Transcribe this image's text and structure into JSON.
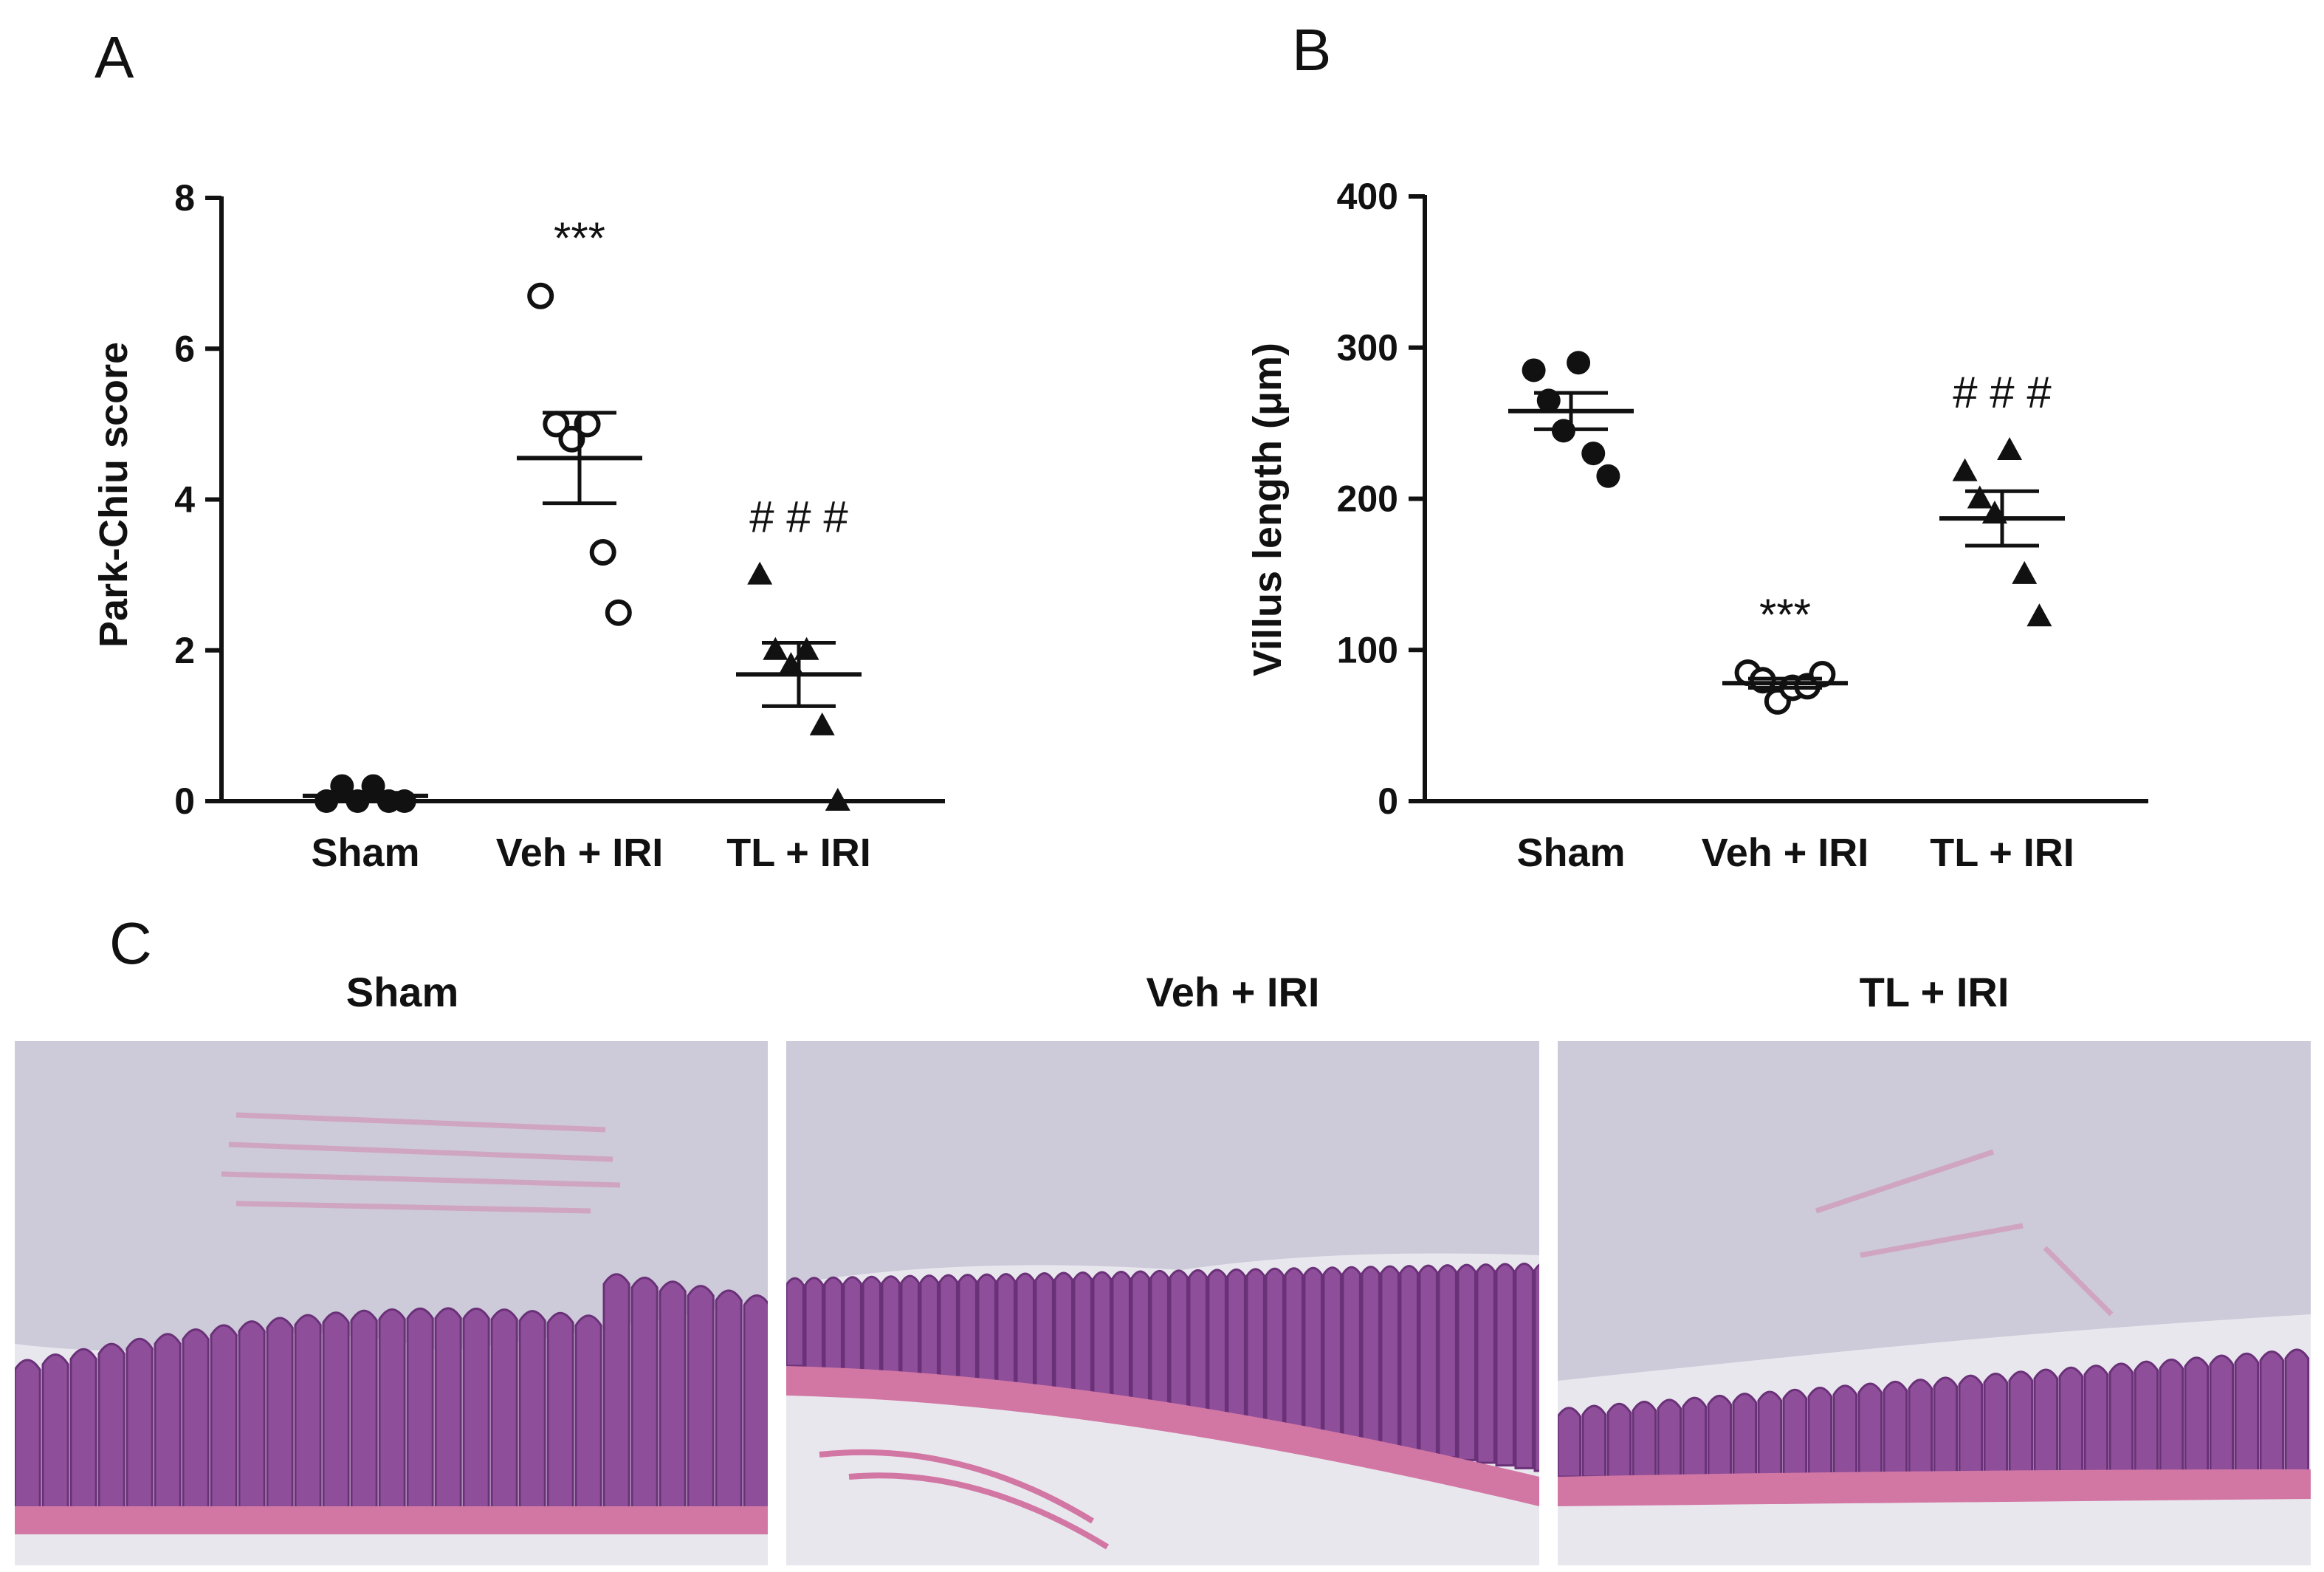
{
  "panels": {
    "a": "A",
    "b": "B",
    "c": "C"
  },
  "chart_data": [
    {
      "type": "scatter",
      "panel": "A",
      "title": "",
      "ylabel": "Park-Chiu score",
      "xlabel": "",
      "ylim": [
        0,
        8
      ],
      "yticks": [
        "0",
        "2",
        "4",
        "6",
        "8"
      ],
      "categories": [
        "Sham",
        "Veh + IRI",
        "TL + IRI"
      ],
      "series": [
        {
          "category": "Sham",
          "marker": "filled-circle",
          "values": [
            0,
            0.2,
            0,
            0.2,
            0,
            0
          ],
          "mean": 0.07,
          "sem": 0.04
        },
        {
          "category": "Veh + IRI",
          "marker": "open-circle",
          "values": [
            6.7,
            5,
            4.8,
            5,
            3.3,
            2.5
          ],
          "mean": 4.55,
          "sem": 0.6,
          "annotation": "***"
        },
        {
          "category": "TL + IRI",
          "marker": "filled-triangle",
          "values": [
            3,
            2,
            1.8,
            2,
            1,
            0
          ],
          "mean": 1.68,
          "sem": 0.42,
          "annotation": "# # #"
        }
      ]
    },
    {
      "type": "scatter",
      "panel": "B",
      "title": "",
      "ylabel": "Villus length (μm)",
      "xlabel": "",
      "ylim": [
        0,
        400
      ],
      "yticks": [
        "0",
        "100",
        "200",
        "300",
        "400"
      ],
      "categories": [
        "Sham",
        "Veh + IRI",
        "TL + IRI"
      ],
      "series": [
        {
          "category": "Sham",
          "marker": "filled-circle",
          "values": [
            285,
            265,
            245,
            290,
            230,
            215
          ],
          "mean": 258,
          "sem": 12
        },
        {
          "category": "Veh + IRI",
          "marker": "open-circle",
          "values": [
            85,
            80,
            66,
            75,
            76,
            84
          ],
          "mean": 78,
          "sem": 3,
          "annotation": "***"
        },
        {
          "category": "TL + IRI",
          "marker": "filled-triangle",
          "values": [
            218,
            200,
            190,
            232,
            150,
            122
          ],
          "mean": 187,
          "sem": 18,
          "annotation": "# # #"
        }
      ]
    }
  ],
  "micrographs": [
    {
      "label": "Sham"
    },
    {
      "label": "Veh + IRI"
    },
    {
      "label": "TL + IRI"
    }
  ],
  "colors": {
    "ink": "#111111",
    "mucosa": "#8e4e9a",
    "mucosa_dark": "#6a3178",
    "serosa": "#d277a4",
    "lumen": "#e9e7ee",
    "debris": "#b7b3c9",
    "background": "#ffffff"
  }
}
